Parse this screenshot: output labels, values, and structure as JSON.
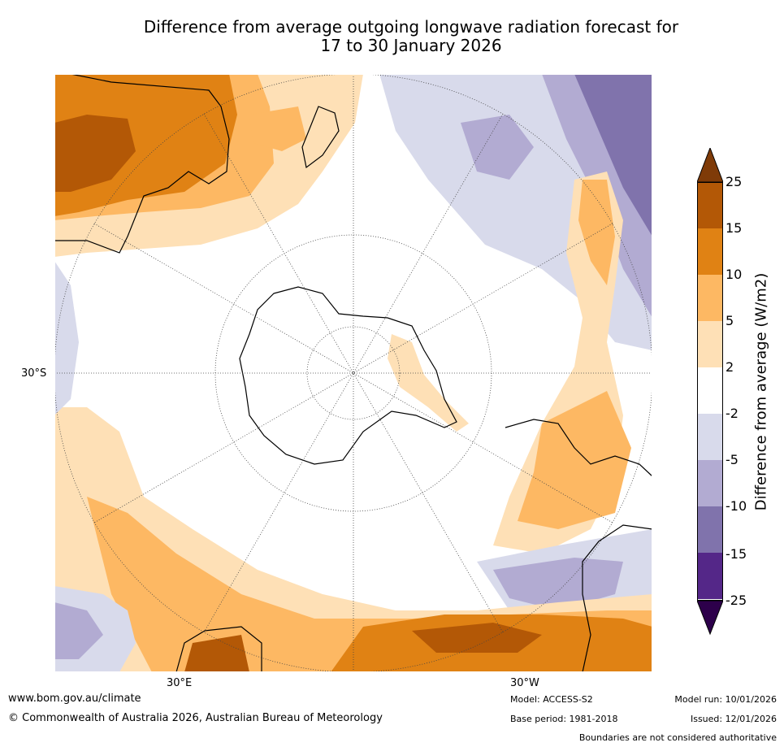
{
  "title_line1": "Difference from average outgoing longwave radiation forecast for",
  "title_line2": "17 to 30 January 2026",
  "map_labels": {
    "lat_30s": "30°S",
    "lon_30e": "30°E",
    "lon_30w": "30°W"
  },
  "colorbar": {
    "title": "Difference from average (W/m2)",
    "ticks": [
      "25",
      "15",
      "10",
      "5",
      "2",
      "-2",
      "-5",
      "-10",
      "-15",
      "-25"
    ],
    "colors": {
      "gt25": "#7f3b08",
      "b15_25": "#b35806",
      "b10_15": "#e08214",
      "b5_10": "#fdb863",
      "b2_5": "#fee0b6",
      "neutral": "#ffffff",
      "bn2_5": "#d8daeb",
      "bn5_10": "#b2abd2",
      "bn10_15": "#8073ac",
      "bn15_25": "#542788",
      "lt25": "#2d004b"
    }
  },
  "footer": {
    "website": "www.bom.gov.au/climate",
    "copyright": "© Commonwealth of Australia 2026, Australian Bureau of Meteorology",
    "model": "Model: ACCESS-S2",
    "base_period": "Base period: 1981-2018",
    "model_run": "Model run: 10/01/2026",
    "issued": "Issued: 12/01/2026",
    "disclaimer": "Boundaries are not considered authoritative"
  }
}
